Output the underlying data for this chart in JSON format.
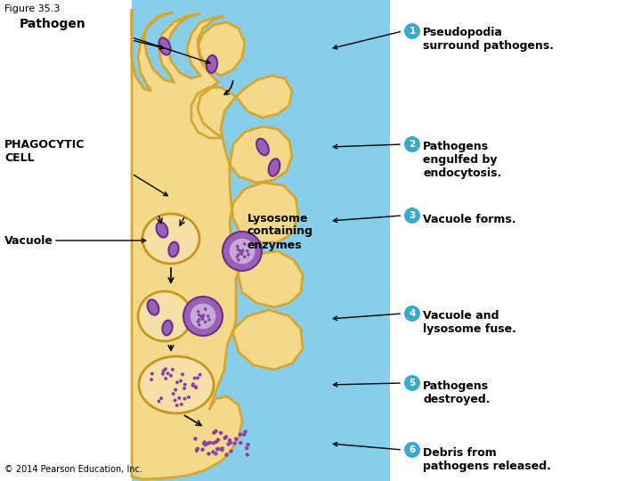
{
  "figure_label": "Figure 35.3",
  "bg_color": "#87CEEB",
  "white": "#ffffff",
  "cell_fill": "#F5D98B",
  "cell_edge": "#D4A830",
  "vacuole_fill": "#F5E0A8",
  "vacuole_edge": "#C8961E",
  "pathogen_fill": "#9B5FB5",
  "pathogen_edge": "#6B2E8A",
  "lysosome_outer_fill": "#9B5FB5",
  "lysosome_outer_edge": "#6B2E8A",
  "lysosome_inner_fill": "#C8A8D8",
  "lysosome_inner_edge": "#9B5FB5",
  "lysosome_dot_fill": "#7B4A98",
  "debris_fill": "#8B3FA8",
  "step_circle_fill": "#3AAAC8",
  "step_circle_edge": "#3AAAC8",
  "step_text_color": "#000000",
  "label_text_color": "#000000",
  "arrow_color": "#000000",
  "label_pathogen": "Pathogen",
  "label_cell": "PHAGOCYTIC\nCELL",
  "label_vacuole": "Vacuole",
  "label_lysosome": "Lysosome\ncontaining\nenzymes",
  "step1_text": "Pseudopodia\nsurround pathogens.",
  "step2_text": "Pathogens\nengulfed by\nendocytosis.",
  "step3_text": "Vacuole forms.",
  "step4_text": "Vacuole and\nlysosome fuse.",
  "step5_text": "Pathogens\ndestroyed.",
  "step6_text": "Debris from\npathogens released.",
  "copyright": "© 2014 Pearson Education, Inc."
}
